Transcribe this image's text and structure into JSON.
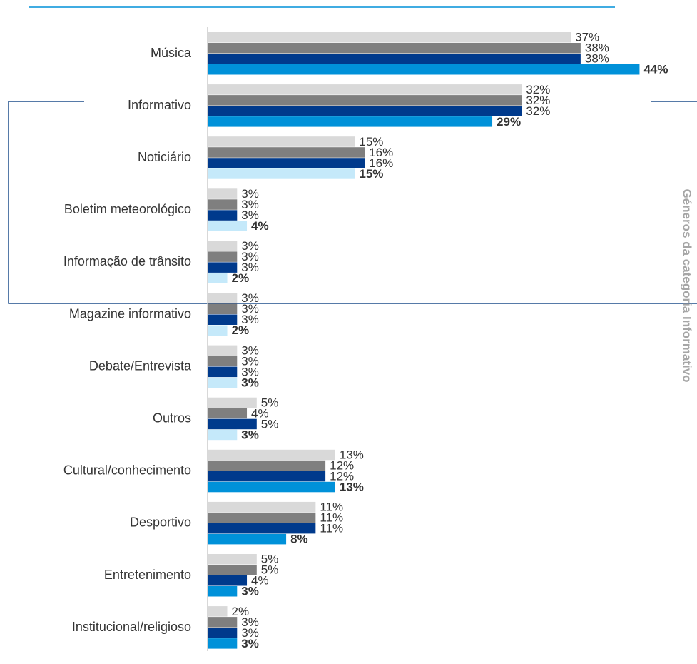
{
  "chart_data": {
    "type": "bar",
    "orientation": "horizontal",
    "annotation": "Géneros da categoria Informativo",
    "categories": [
      "Música",
      "Informativo",
      "Noticiário",
      "Boletim meteorológico",
      "Informação de trânsito",
      "Magazine informativo",
      "Debate/Entrevista",
      "Outros",
      "Cultural/conhecimento",
      "Desportivo",
      "Entretenimento",
      "Institucional/religioso"
    ],
    "xlim": [
      0,
      50
    ],
    "series": [
      {
        "color": "#d9d9d9",
        "values": [
          37,
          32,
          15,
          3,
          3,
          3,
          3,
          5,
          13,
          11,
          5,
          2
        ],
        "value_labels": [
          "37%",
          "32%",
          "15%",
          "3%",
          "3%",
          "3%",
          "3%",
          "5%",
          "13%",
          "11%",
          "5%",
          "2%"
        ]
      },
      {
        "color": "#7f7f7f",
        "values": [
          38,
          32,
          16,
          3,
          3,
          3,
          3,
          4,
          12,
          11,
          5,
          3
        ],
        "value_labels": [
          "38%",
          "32%",
          "16%",
          "3%",
          "3%",
          "3%",
          "3%",
          "4%",
          "12%",
          "11%",
          "5%",
          "3%"
        ]
      },
      {
        "color": "#003a8c",
        "values": [
          38,
          32,
          16,
          3,
          3,
          3,
          3,
          5,
          12,
          11,
          4,
          3
        ],
        "value_labels": [
          "38%",
          "32%",
          "16%",
          "3%",
          "3%",
          "3%",
          "3%",
          "5%",
          "12%",
          "11%",
          "4%",
          "3%"
        ]
      },
      {
        "colors": [
          "#0091d9",
          "#0091d9",
          "#c5e9fa",
          "#c5e9fa",
          "#c5e9fa",
          "#c5e9fa",
          "#c5e9fa",
          "#c5e9fa",
          "#0091d9",
          "#0091d9",
          "#0091d9",
          "#0091d9"
        ],
        "bold_labels": true,
        "values": [
          44,
          29,
          15,
          4,
          2,
          2,
          3,
          3,
          13,
          8,
          3,
          3
        ],
        "value_labels": [
          "44%",
          "29%",
          "15%",
          "4%",
          "2%",
          "2%",
          "3%",
          "3%",
          "13%",
          "8%",
          "3%",
          "3%"
        ]
      }
    ]
  }
}
